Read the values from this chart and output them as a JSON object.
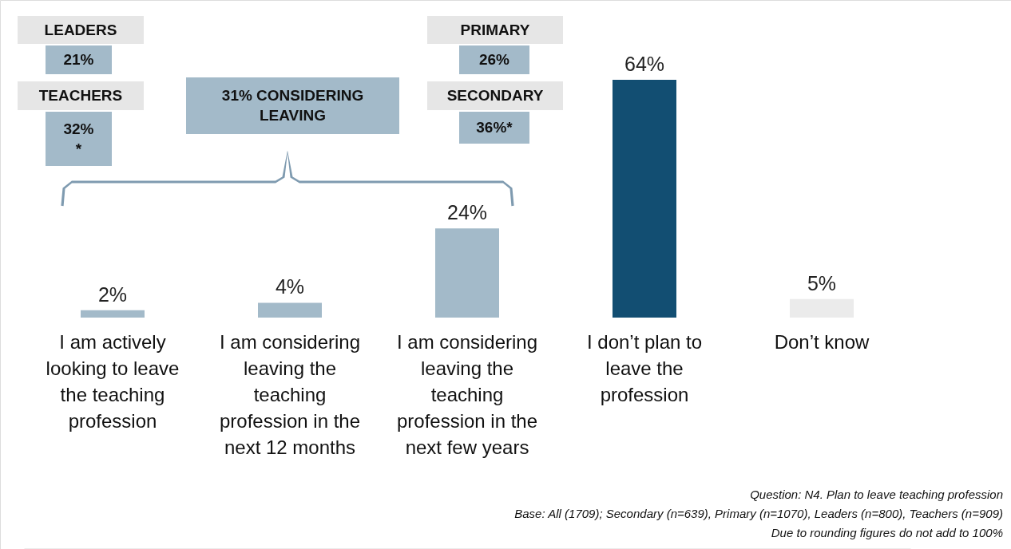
{
  "chart_data": {
    "type": "bar",
    "categories": [
      "I am actively looking to leave the teaching profession",
      "I am considering leaving the teaching profession in the next 12 months",
      "I am considering leaving the teaching profession in the next few years",
      "I don’t plan to leave the profession",
      "Don’t know"
    ],
    "values": [
      2,
      4,
      24,
      64,
      5
    ],
    "colors": [
      "#a3bac9",
      "#a3bac9",
      "#a3bac9",
      "#124e72",
      "#ebebeb"
    ],
    "value_labels": [
      "2%",
      "4%",
      "24%",
      "64%",
      "5%"
    ],
    "annotations": [
      "LEADERS",
      "21%",
      "TEACHERS",
      "32% *",
      "31% CONSIDERING LEAVING",
      "PRIMARY",
      "26%",
      "SECONDARY",
      "36%*",
      "Question: N4. Plan to leave teaching profession",
      "Base: All (1709); Secondary (n=639), Primary (n=1070), Leaders (n=800), Teachers (n=909)",
      "Due to rounding figures do not add to 100%"
    ]
  }
}
